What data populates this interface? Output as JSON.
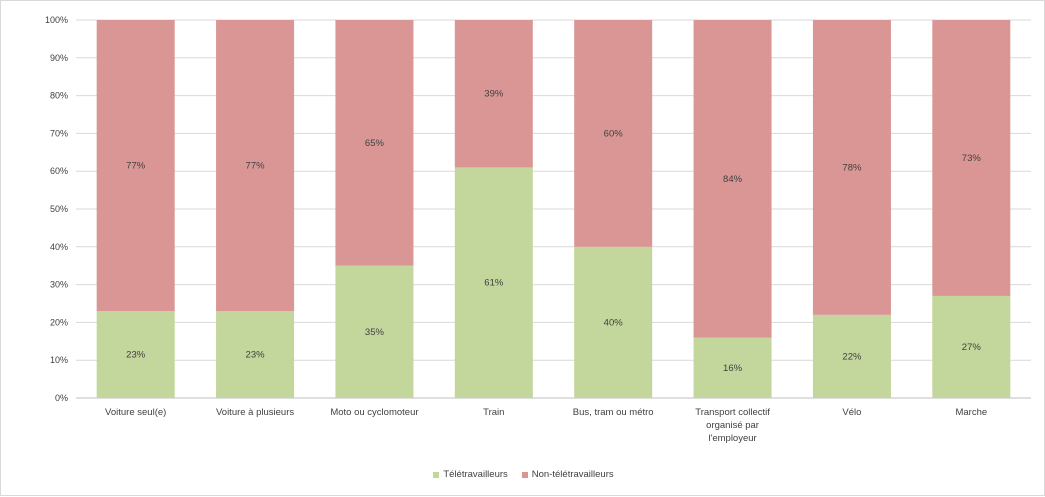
{
  "chart_data": {
    "type": "bar",
    "stacked": true,
    "percent": true,
    "categories": [
      "Voiture seul(e)",
      "Voiture à plusieurs",
      "Moto ou cyclomoteur",
      "Train",
      "Bus, tram ou métro",
      "Transport collectif organisé par l'employeur",
      "Vélo",
      "Marche"
    ],
    "series": [
      {
        "name": "Télétravailleurs",
        "color": "#c3d69b",
        "values": [
          23,
          23,
          35,
          61,
          40,
          16,
          22,
          27
        ],
        "labels": [
          "23%",
          "23%",
          "35%",
          "61%",
          "40%",
          "16%",
          "22%",
          "27%"
        ]
      },
      {
        "name": "Non-télétravailleurs",
        "color": "#d99694",
        "values": [
          77,
          77,
          65,
          39,
          60,
          84,
          78,
          73
        ],
        "labels": [
          "77%",
          "77%",
          "65%",
          "39%",
          "60%",
          "84%",
          "78%",
          "73%"
        ]
      }
    ],
    "yticks": [
      "0%",
      "10%",
      "20%",
      "30%",
      "40%",
      "50%",
      "60%",
      "70%",
      "80%",
      "90%",
      "100%"
    ],
    "ylim": [
      0,
      100
    ],
    "grid": true,
    "legend_position": "bottom",
    "title": "",
    "xlabel": "",
    "ylabel": ""
  }
}
